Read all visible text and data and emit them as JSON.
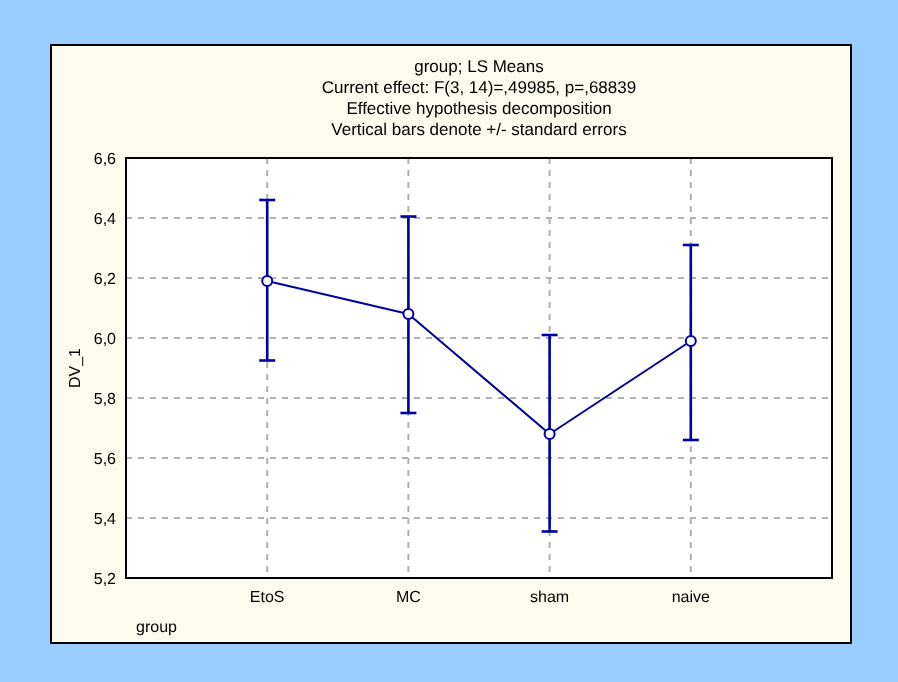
{
  "chart_data": {
    "type": "line",
    "title": "group; LS Means",
    "annotations": [
      "Current effect: F(3, 14)=,49985, p=,68839",
      "Effective hypothesis decomposition",
      "Vertical bars denote +/- standard errors"
    ],
    "xlabel": "group",
    "ylabel": "DV_1",
    "categories": [
      "EtoS",
      "MC",
      "sham",
      "naive"
    ],
    "series": [
      {
        "color": "#0000a0",
        "values": [
          6.19,
          6.08,
          5.68,
          5.99
        ],
        "errors": [
          [
            5.925,
            6.46
          ],
          [
            5.75,
            6.405
          ],
          [
            5.355,
            6.01
          ],
          [
            5.66,
            6.31
          ]
        ]
      }
    ],
    "ylim": [
      5.2,
      6.6
    ],
    "yticks": [
      {
        "value": 5.2,
        "label": "5,2"
      },
      {
        "value": 5.4,
        "label": "5,4"
      },
      {
        "value": 5.6,
        "label": "5,6"
      },
      {
        "value": 5.8,
        "label": "5,8"
      },
      {
        "value": 6.0,
        "label": "6,0"
      },
      {
        "value": 6.2,
        "label": "6,2"
      },
      {
        "value": 6.4,
        "label": "6,4"
      },
      {
        "value": 6.6,
        "label": "6,6"
      }
    ],
    "grid": true,
    "marker": "circle",
    "line_style": "solid"
  }
}
